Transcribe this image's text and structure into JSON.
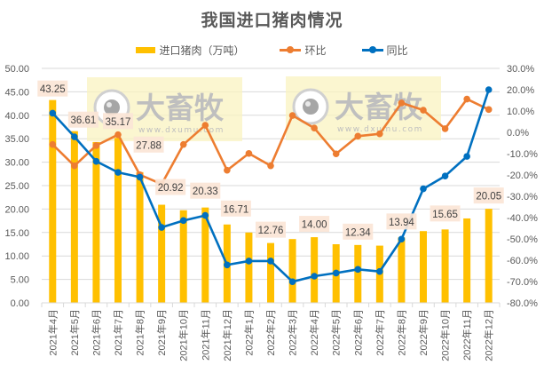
{
  "chart_data": {
    "type": "bar+line",
    "title": "我国进口猪肉情况",
    "categories": [
      "2021年4月",
      "2021年5月",
      "2021年6月",
      "2021年7月",
      "2021年8月",
      "2021年9月",
      "2021年10月",
      "2021年11月",
      "2021年12月",
      "2022年1月",
      "2022年2月",
      "2022年3月",
      "2022年4月",
      "2022年5月",
      "2022年6月",
      "2022年7月",
      "2022年8月",
      "2022年9月",
      "2022年10月",
      "2022年11月",
      "2022年12月"
    ],
    "series": [
      {
        "name": "进口猪肉（万吨）",
        "type": "bar",
        "axis": "left",
        "color": "#FFC000",
        "values": [
          43.25,
          36.61,
          34.3,
          35.17,
          27.88,
          20.92,
          19.75,
          20.33,
          16.71,
          15.0,
          12.76,
          13.6,
          14.0,
          12.5,
          12.34,
          12.2,
          13.94,
          15.3,
          15.65,
          18.0,
          20.05
        ],
        "data_labels": {
          "0": "43.25",
          "1": "36.61",
          "3": "35.17",
          "4": "27.88",
          "5": "20.92",
          "7": "20.33",
          "8": "16.71",
          "10": "12.76",
          "12": "14.00",
          "14": "12.34",
          "16": "13.94",
          "18": "15.65",
          "20": "20.05"
        }
      },
      {
        "name": "环比",
        "type": "line",
        "axis": "right",
        "color": "#ED7D31",
        "unit": "%",
        "values": [
          -5.7,
          -15.7,
          -6.2,
          -1.1,
          -19.9,
          -24.3,
          -5.7,
          3.3,
          -17.8,
          -9.9,
          -15.7,
          7.9,
          2.0,
          -10.1,
          -1.8,
          -0.7,
          13.8,
          10.4,
          1.7,
          15.6,
          10.7
        ]
      },
      {
        "name": "同比",
        "type": "line",
        "axis": "right",
        "color": "#0070C0",
        "unit": "%",
        "values": [
          9.0,
          -2.1,
          -13.6,
          -18.8,
          -21.0,
          -44.6,
          -41.4,
          -39.0,
          -62.2,
          -60.4,
          -60.4,
          -70.1,
          -67.5,
          -66.0,
          -64.3,
          -65.3,
          -50.1,
          -26.5,
          -20.5,
          -11.3,
          20.0
        ]
      }
    ],
    "left_axis": {
      "min": 0,
      "max": 50,
      "step": 5,
      "ticks": [
        "0.00",
        "5.00",
        "10.00",
        "15.00",
        "20.00",
        "25.00",
        "30.00",
        "35.00",
        "40.00",
        "45.00",
        "50.00"
      ]
    },
    "right_axis": {
      "min": -80,
      "max": 30,
      "step": 10,
      "ticks": [
        "-80.0%",
        "-70.0%",
        "-60.0%",
        "-50.0%",
        "-40.0%",
        "-30.0%",
        "-20.0%",
        "-10.0%",
        "0.0%",
        "10.0%",
        "20.0%",
        "30.0%"
      ]
    },
    "xlabel": "",
    "ylabel": "",
    "grid": true,
    "legend_position": "top"
  },
  "legend": {
    "bar_label": "进口猪肉（万吨）",
    "mom_label": "环比",
    "yoy_label": "同比"
  },
  "watermark": {
    "brand": "大畜牧",
    "url": "www.dxumu.com"
  },
  "colors": {
    "bar": "#FFC000",
    "mom": "#ED7D31",
    "yoy": "#0070C0",
    "label_bg": "#FBE5D6",
    "grid": "#D9D9D9"
  }
}
